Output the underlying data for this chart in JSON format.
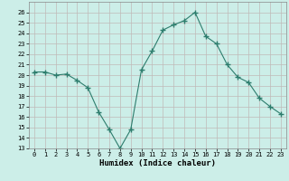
{
  "x": [
    0,
    1,
    2,
    3,
    4,
    5,
    6,
    7,
    8,
    9,
    10,
    11,
    12,
    13,
    14,
    15,
    16,
    17,
    18,
    19,
    20,
    21,
    22,
    23
  ],
  "y": [
    20.3,
    20.3,
    20.0,
    20.1,
    19.5,
    18.8,
    16.5,
    14.8,
    13.0,
    14.8,
    20.5,
    22.3,
    24.3,
    24.8,
    25.2,
    26.0,
    23.7,
    23.0,
    21.0,
    19.8,
    19.3,
    17.8,
    17.0,
    16.3
  ],
  "line_color": "#2d7d6d",
  "marker": "+",
  "marker_size": 4,
  "bg_color": "#cceee8",
  "grid_color": "#c0bab8",
  "xlabel": "Humidex (Indice chaleur)",
  "ylim": [
    13,
    27
  ],
  "xlim": [
    -0.5,
    23.5
  ],
  "yticks": [
    13,
    14,
    15,
    16,
    17,
    18,
    19,
    20,
    21,
    22,
    23,
    24,
    25,
    26
  ],
  "xticks": [
    0,
    1,
    2,
    3,
    4,
    5,
    6,
    7,
    8,
    9,
    10,
    11,
    12,
    13,
    14,
    15,
    16,
    17,
    18,
    19,
    20,
    21,
    22,
    23
  ]
}
